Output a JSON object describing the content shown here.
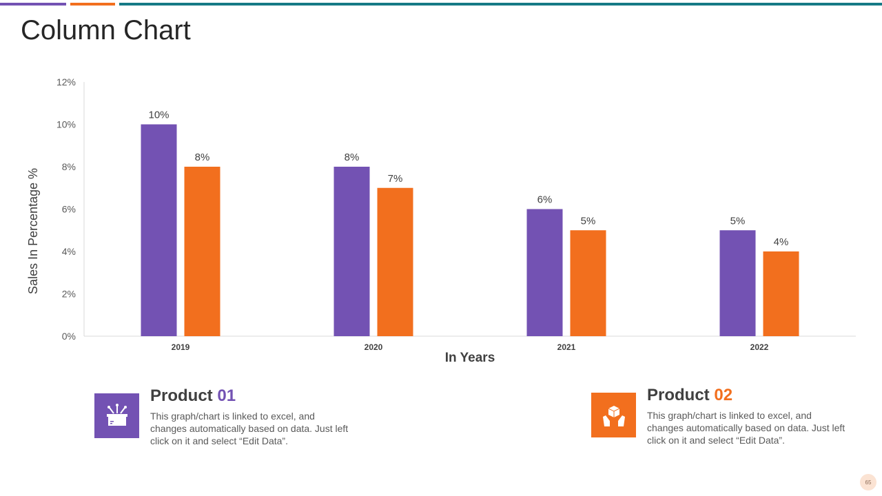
{
  "slide": {
    "title": "Column Chart",
    "page_number": "65"
  },
  "colors": {
    "purple": "#7352b3",
    "orange": "#f26f1e",
    "teal": "#167a86",
    "axis": "#d9d9d9"
  },
  "chart_data": {
    "type": "bar",
    "title": "",
    "categories": [
      "2019",
      "2020",
      "2021",
      "2022"
    ],
    "series": [
      {
        "name": "Product 01",
        "values": [
          10,
          8,
          6,
          5
        ],
        "labels": [
          "10%",
          "8%",
          "6%",
          "5%"
        ],
        "color": "#7352b3"
      },
      {
        "name": "Product 02",
        "values": [
          8,
          7,
          5,
          4
        ],
        "labels": [
          "8%",
          "7%",
          "5%",
          "4%"
        ],
        "color": "#f26f1e"
      }
    ],
    "ylim": [
      0,
      12
    ],
    "yticks": [
      0,
      2,
      4,
      6,
      8,
      10,
      12
    ],
    "ytick_labels": [
      "0%",
      "2%",
      "4%",
      "6%",
      "8%",
      "10%",
      "12%"
    ],
    "xlabel": "In Years",
    "ylabel": "Sales In Percentage %",
    "grid": false,
    "legend": "none"
  },
  "products": [
    {
      "title_prefix": "Product",
      "title_number": "01",
      "description": "This graph/chart is linked to excel, and changes automatically based on data. Just left click on it and select “Edit Data”.",
      "icon": "gift-box-icon"
    },
    {
      "title_prefix": "Product",
      "title_number": "02",
      "description": "This graph/chart is linked to excel, and changes automatically based on data. Just left click on it and select “Edit Data”.",
      "icon": "hands-holding-box-icon"
    }
  ]
}
